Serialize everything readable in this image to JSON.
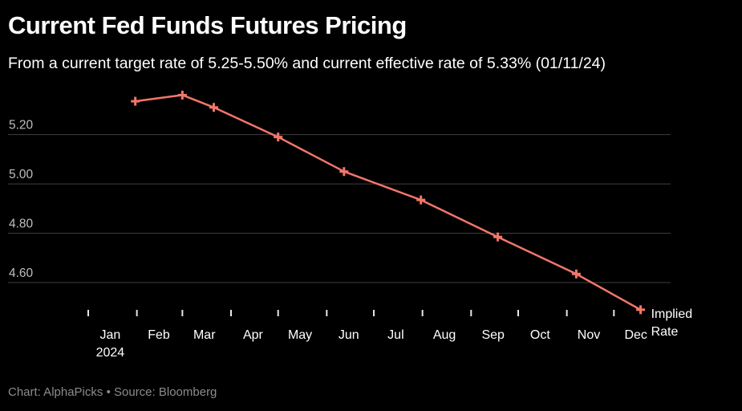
{
  "header": {
    "title": "Current Fed Funds Futures Pricing",
    "subtitle": "From a current target rate of 5.25-5.50% and current effective rate of 5.33% (01/11/24)"
  },
  "footer": {
    "credit": "Chart: AlphaPicks",
    "separator": "•",
    "source": "Source: Bloomberg"
  },
  "chart_data": {
    "type": "line",
    "title": "Current Fed Funds Futures Pricing",
    "subtitle": "From a current target rate of 5.25-5.50% and current effective rate of 5.33% (01/11/24)",
    "x": [
      "2024-01-31",
      "2024-03-01",
      "2024-03-21",
      "2024-05-01",
      "2024-06-12",
      "2024-07-31",
      "2024-09-18",
      "2024-11-07",
      "2024-12-18"
    ],
    "xlim": [
      "2024-01-01",
      "2024-12-31"
    ],
    "x_ticks": [
      "Jan",
      "Feb",
      "Mar",
      "Apr",
      "May",
      "Jun",
      "Jul",
      "Aug",
      "Sep",
      "Oct",
      "Nov",
      "Dec"
    ],
    "x_tick_year": "2024",
    "series": [
      {
        "name": "Implied Rate",
        "values": [
          5.335,
          5.36,
          5.31,
          5.19,
          5.05,
          4.935,
          4.785,
          4.635,
          4.49
        ],
        "color": "#f2766b",
        "marker": "plus"
      }
    ],
    "y_ticks": [
      5.2,
      5.0,
      4.8,
      4.6
    ],
    "y_tick_labels": [
      "5.20",
      "5.00",
      "4.80",
      "4.60"
    ],
    "ylim": [
      4.47,
      5.42
    ],
    "grid": "horizontal",
    "legend": "end-of-line label",
    "colors": {
      "background": "#000000",
      "line": "#f2766b",
      "grid": "#404040",
      "tick_label": "#bfbfbf",
      "axis_label": "#ffffff"
    }
  }
}
